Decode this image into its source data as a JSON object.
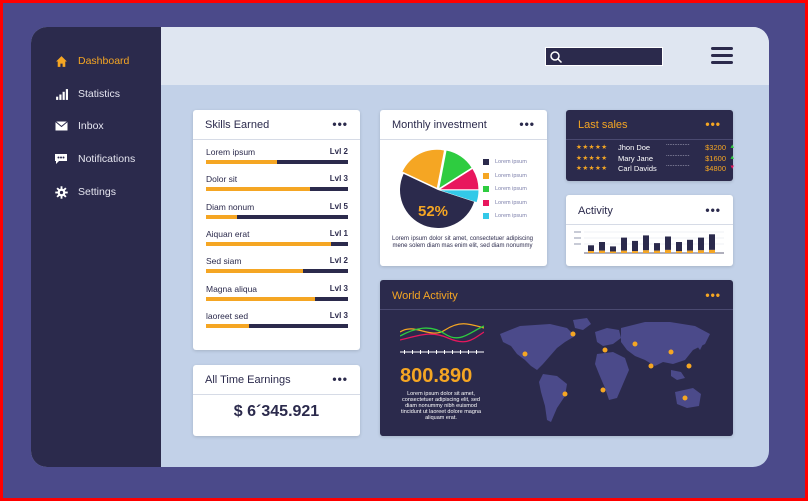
{
  "nav": [
    {
      "label": "Dashboard",
      "icon": "home-icon",
      "active": true
    },
    {
      "label": "Statistics",
      "icon": "bar-chart-icon",
      "active": false
    },
    {
      "label": "Inbox",
      "icon": "mail-icon",
      "active": false
    },
    {
      "label": "Notifications",
      "icon": "chat-icon",
      "active": false
    },
    {
      "label": "Settings",
      "icon": "gear-icon",
      "active": false
    }
  ],
  "skills": {
    "title": "Skills Earned",
    "items": [
      {
        "name": "Lorem ipsum",
        "level": "Lvl 2",
        "progress": 0.5
      },
      {
        "name": "Dolor sit",
        "level": "Lvl 3",
        "progress": 0.73
      },
      {
        "name": "Diam nonum",
        "level": "Lvl 5",
        "progress": 0.22
      },
      {
        "name": "Aiquan erat",
        "level": "Lvl 1",
        "progress": 0.88
      },
      {
        "name": "Sed siam",
        "level": "Lvl 2",
        "progress": 0.68
      },
      {
        "name": "Magna aliqua",
        "level": "Lvl 3",
        "progress": 0.77
      },
      {
        "name": "laoreet sed",
        "level": "Lvl 3",
        "progress": 0.3
      }
    ]
  },
  "earnings": {
    "title": "All Time Earnings",
    "value": "$ 6´345.921"
  },
  "investment": {
    "title": "Monthly investment",
    "center_label": "52%",
    "legend": [
      "Lorem ipsum",
      "Lorem ipsum",
      "Lorem ipsum",
      "Lorem ipsum",
      "Lorem ipsum"
    ],
    "text": "Lorem ipsum dolor sit amet, consectetuer adipiscing mene solem diam mas enim elit, sed diam nonummy"
  },
  "chart_data": {
    "type": "pie",
    "center_label": "52%",
    "slices": [
      {
        "color": "#2b2a4c",
        "value": 52
      },
      {
        "color": "#f5a623",
        "value": 21
      },
      {
        "color": "#2ecc40",
        "value": 13
      },
      {
        "color": "#e8175d",
        "value": 9
      },
      {
        "color": "#33c9e8",
        "value": 5
      }
    ]
  },
  "last_sales": {
    "title": "Last sales",
    "rows": [
      {
        "stars": "★★★★★",
        "name": "Jhon Doe",
        "leader": "....................",
        "amount": "$3200",
        "trend": "up"
      },
      {
        "stars": "★★★★★",
        "name": "Mary Jane",
        "leader": "....................",
        "amount": "$1600",
        "trend": "up"
      },
      {
        "stars": "★★★★★",
        "name": "Carl Davids",
        "leader": "....................",
        "amount": "$4800",
        "trend": "down"
      }
    ]
  },
  "activity": {
    "title": "Activity"
  },
  "activity_chart": {
    "type": "bar",
    "stacks": [
      [
        0.35,
        0.25
      ],
      [
        0.5,
        0.3
      ],
      [
        0.3,
        0.2
      ],
      [
        0.7,
        0.3
      ],
      [
        0.55,
        0.25
      ],
      [
        0.8,
        0.35
      ],
      [
        0.45,
        0.3
      ],
      [
        0.75,
        0.4
      ],
      [
        0.5,
        0.25
      ],
      [
        0.6,
        0.3
      ],
      [
        0.7,
        0.35
      ],
      [
        0.85,
        0.4
      ]
    ]
  },
  "world": {
    "title": "World Activity",
    "number": "800.890",
    "text": "Lorem ipsum dolor sit amet, consectetuer adipiscing elit, sed diam nonummy nibh euismod tincidunt ut laoreet dolore magna aliquam erat."
  },
  "colors": {
    "accent": "#f5a623",
    "dark": "#2b2a4c",
    "background": "#4b4a8a",
    "panel": "#c2d1e8"
  }
}
